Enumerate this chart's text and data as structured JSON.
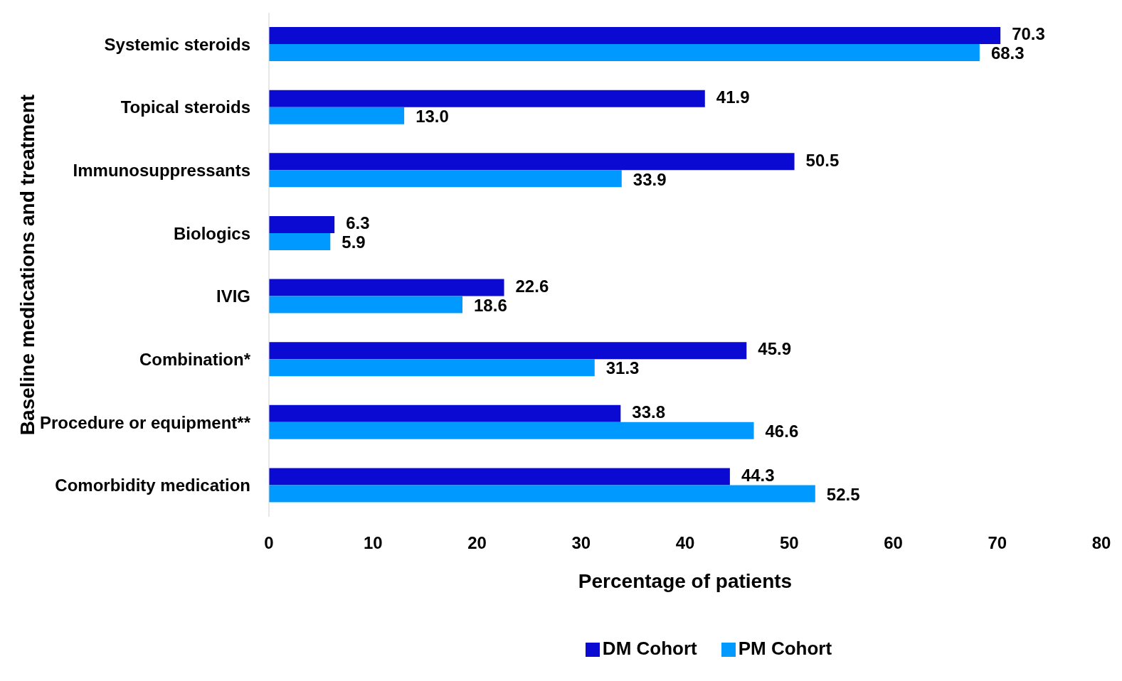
{
  "chart_data": {
    "type": "bar",
    "orientation": "horizontal",
    "xlabel": "Percentage of patients",
    "ylabel": "Baseline medications and treatment",
    "categories": [
      "Systemic steroids",
      "Topical steroids",
      "Immunosuppressants",
      "Biologics",
      "IVIG",
      "Combination*",
      "Procedure or equipment**",
      "Comorbidity medication"
    ],
    "series": [
      {
        "name": "DM Cohort",
        "color": "#0a0ad2",
        "values": [
          70.3,
          41.9,
          50.5,
          6.3,
          22.6,
          45.9,
          33.8,
          44.3
        ],
        "value_labels": [
          "70.3",
          "41.9",
          "50.5",
          "6.3",
          "22.6",
          "45.9",
          "33.8",
          "44.3"
        ]
      },
      {
        "name": "PM Cohort",
        "color": "#0099ff",
        "values": [
          68.3,
          13.0,
          33.9,
          5.9,
          18.6,
          31.3,
          46.6,
          52.5
        ],
        "value_labels": [
          "68.3",
          "13.0",
          "33.9",
          "5.9",
          "18.6",
          "31.3",
          "46.6",
          "52.5"
        ]
      }
    ],
    "xlim": [
      0,
      80
    ],
    "xticks": [
      0,
      10,
      20,
      30,
      40,
      50,
      60,
      70,
      80
    ],
    "legend": "bottom",
    "grid": false
  }
}
